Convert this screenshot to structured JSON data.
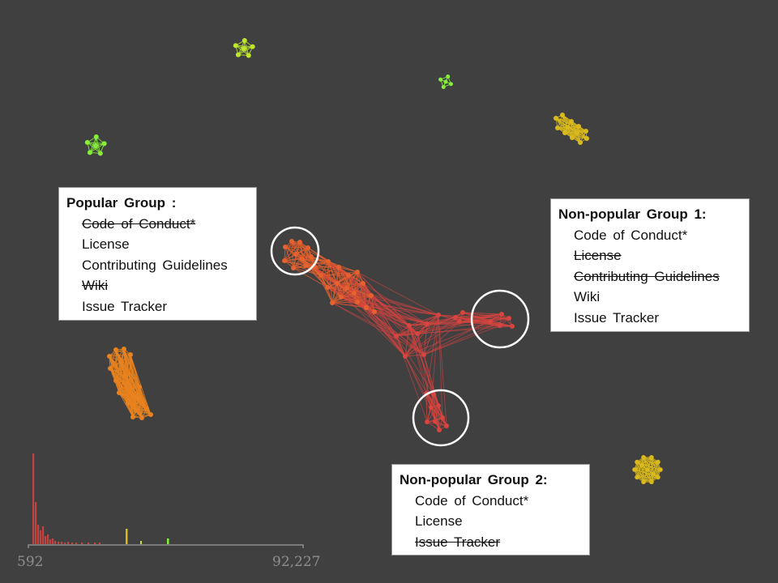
{
  "panels": {
    "popular": {
      "title": "Popular Group :",
      "features": [
        {
          "label": "Code of Conduct*",
          "struck": true
        },
        {
          "label": "License",
          "struck": false
        },
        {
          "label": "Contributing Guidelines",
          "struck": false
        },
        {
          "label": "Wiki",
          "struck": true
        },
        {
          "label": "Issue Tracker",
          "struck": false
        }
      ]
    },
    "nonpopular1": {
      "title": "Non-popular Group 1:",
      "features": [
        {
          "label": "Code of Conduct*",
          "struck": false
        },
        {
          "label": "License",
          "struck": true
        },
        {
          "label": "Contributing Guidelines",
          "struck": true
        },
        {
          "label": "Wiki",
          "struck": false
        },
        {
          "label": "Issue Tracker",
          "struck": false
        }
      ]
    },
    "nonpopular2": {
      "title": "Non-popular Group 2:",
      "features": [
        {
          "label": "Code of Conduct*",
          "struck": false
        },
        {
          "label": "License",
          "struck": false
        },
        {
          "label": "Issue Tracker",
          "struck": true
        }
      ]
    }
  },
  "histogram": {
    "min_label": "592",
    "max_label": "92,227"
  },
  "colors": {
    "background": "#404040",
    "main_cluster": "#d8443f",
    "popular_cluster": "#e5622e",
    "orange_cluster": "#e8821f",
    "yellow_cluster": "#d9b91c",
    "lime_cluster": "#bde62c",
    "green_cluster": "#86ee3a",
    "highlight_ring": "#ffffff",
    "axis": "#8e8e8e"
  }
}
